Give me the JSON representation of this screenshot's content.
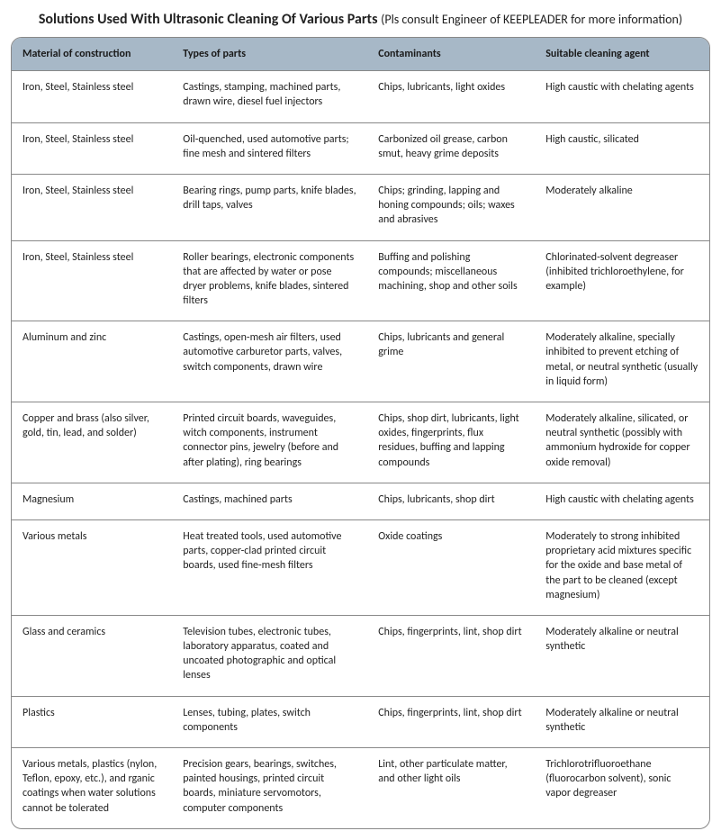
{
  "title_main": "Solutions Used With Ultrasonic Cleaning Of Various Parts",
  "title_sub": "(Pls consult Engineer of KEEPLEADER for more information)",
  "headers": {
    "c0": "Material of construction",
    "c1": "Types of parts",
    "c2": "Contaminants",
    "c3": "Suitable cleaning agent"
  },
  "rows": [
    {
      "c0": "Iron, Steel, Stainless steel",
      "c1": "Castings, stamping, machined parts, drawn wire, diesel fuel injectors",
      "c2": "Chips, lubricants, light oxides",
      "c3": "High caustic with chelating agents"
    },
    {
      "c0": "Iron, Steel, Stainless steel",
      "c1": "Oil-quenched, used automotive parts; fine mesh and sintered filters",
      "c2": "Carbonized oil grease, carbon smut, heavy grime deposits",
      "c3": "High caustic, silicated"
    },
    {
      "c0": "Iron, Steel, Stainless steel",
      "c1": "Bearing rings, pump parts, knife blades, drill taps, valves",
      "c2": "Chips; grinding, lapping and honing compounds; oils; waxes and abrasives",
      "c3": " Moderately alkaline"
    },
    {
      "c0": "Iron, Steel, Stainless steel",
      "c1": "Roller bearings, electronic components that are affected by water or pose dryer problems, knife blades, sintered filters",
      "c2": "Buffing and polishing compounds; miscellaneous machining, shop and other soils",
      "c3": "Chlorinated-solvent degreaser (inhibited trichloroethylene, for example)"
    },
    {
      "c0": " Aluminum and zinc",
      "c1": "Castings, open-mesh air filters, used automotive carburetor parts, valves, switch components, drawn wire",
      "c2": "Chips, lubricants and general grime",
      "c3": "Moderately alkaline, specially inhibited to prevent etching of metal, or neutral synthetic (usually in liquid form)"
    },
    {
      "c0": "Copper and brass (also silver, gold, tin, lead, and solder)",
      "c1": "Printed circuit boards, waveguides, witch components, instrument connector pins, jewelry (before and after plating), ring bearings",
      "c2": "Chips, shop dirt, lubricants, light oxides, fingerprints, flux residues, buffing and lapping compounds",
      "c3": "Moderately alkaline, silicated, or neutral synthetic (possibly with ammonium hydroxide for copper oxide removal)"
    },
    {
      "c0": " Magnesium",
      "c1": "Castings, machined parts",
      "c2": "Chips, lubricants, shop dirt",
      "c3": "High caustic with chelating agents"
    },
    {
      "c0": " Various metals",
      "c1": "Heat treated tools, used automotive parts, copper-clad printed circuit boards, used fine-mesh filters",
      "c2": "Oxide coatings",
      "c3": "Moderately to strong inhibited proprietary acid mixtures specific for the oxide and base metal of the part to be cleaned (except magnesium)"
    },
    {
      "c0": "  Glass and ceramics",
      "c1": "Television tubes, electronic tubes, laboratory apparatus, coated and uncoated photographic and optical lenses",
      "c2": "Chips, fingerprints, lint, shop dirt",
      "c3": "Moderately alkaline or neutral synthetic"
    },
    {
      "c0": "  Plastics",
      "c1": "Lenses, tubing, plates, switch components",
      "c2": "Chips, fingerprints, lint, shop dirt",
      "c3": "Moderately alkaline or neutral synthetic"
    },
    {
      "c0": "Various metals, plastics (nylon, Teflon, epoxy, etc.), and rganic coatings when water solutions cannot be tolerated",
      "c1": "Precision gears, bearings, switches, painted housings, printed circuit boards, miniature servomotors, computer components",
      "c2": "Lint, other particulate matter, and other light oils",
      "c3": "Trichlorotrifluoroethane (fluorocarbon solvent), sonic vapor degreaser"
    }
  ],
  "style": {
    "header_bg": "#a7b8c7",
    "border_color": "#888888",
    "text_color": "#222222",
    "font_size_body": 12,
    "font_size_title": 16,
    "corner_radius": 12,
    "col_widths_pct": [
      23,
      28,
      24,
      25
    ]
  }
}
